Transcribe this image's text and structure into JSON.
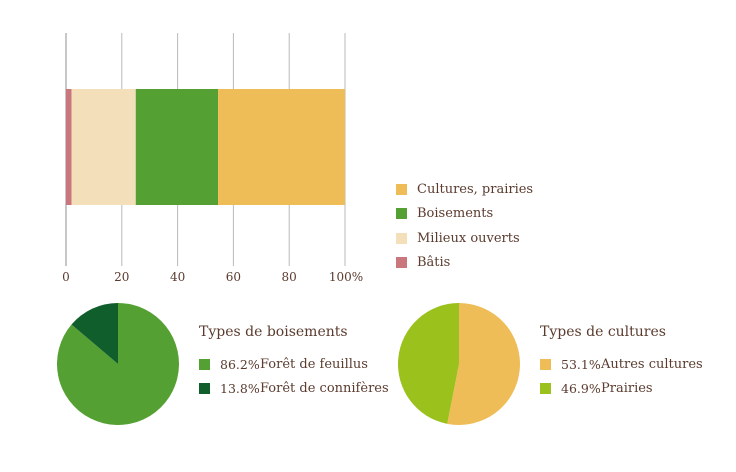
{
  "chart_data": [
    {
      "type": "bar",
      "orientation": "horizontal",
      "stacked": true,
      "categories": [
        ""
      ],
      "series": [
        {
          "name": "Bâtis",
          "values": [
            2
          ],
          "color": "#c9767d"
        },
        {
          "name": "Milieux ouverts",
          "values": [
            23
          ],
          "color": "#f3e0bb"
        },
        {
          "name": "Boisements",
          "values": [
            29.5
          ],
          "color": "#54a032"
        },
        {
          "name": "Cultures, prairies",
          "values": [
            45.5
          ],
          "color": "#efbd58"
        }
      ],
      "xlim": [
        0,
        100
      ],
      "xticks": [
        "0",
        "20",
        "40",
        "60",
        "80",
        "100%"
      ],
      "grid": true,
      "legend": {
        "placement": "right",
        "entries": [
          "Cultures, prairies",
          "Boisements",
          "Milieux ouverts",
          "Bâtis"
        ]
      }
    },
    {
      "type": "pie",
      "title": "Types de boisements",
      "slices": [
        {
          "label": "Forêt de feuillus",
          "value": 86.2,
          "value_label": "86.2%",
          "color": "#54a032"
        },
        {
          "label": "Forêt de connifères",
          "value": 13.8,
          "value_label": "13.8%",
          "color": "#0f5e2b"
        }
      ]
    },
    {
      "type": "pie",
      "title": "Types de cultures",
      "slices": [
        {
          "label": "Autres cultures",
          "value": 53.1,
          "value_label": "53.1%",
          "color": "#efbd58"
        },
        {
          "label": "Prairies",
          "value": 46.9,
          "value_label": "46.9%",
          "color": "#9ac11c"
        }
      ]
    }
  ],
  "colors": {
    "grid": "#b9b9b9",
    "axis": "#8f8f8f",
    "text": "#5a3b2e"
  }
}
